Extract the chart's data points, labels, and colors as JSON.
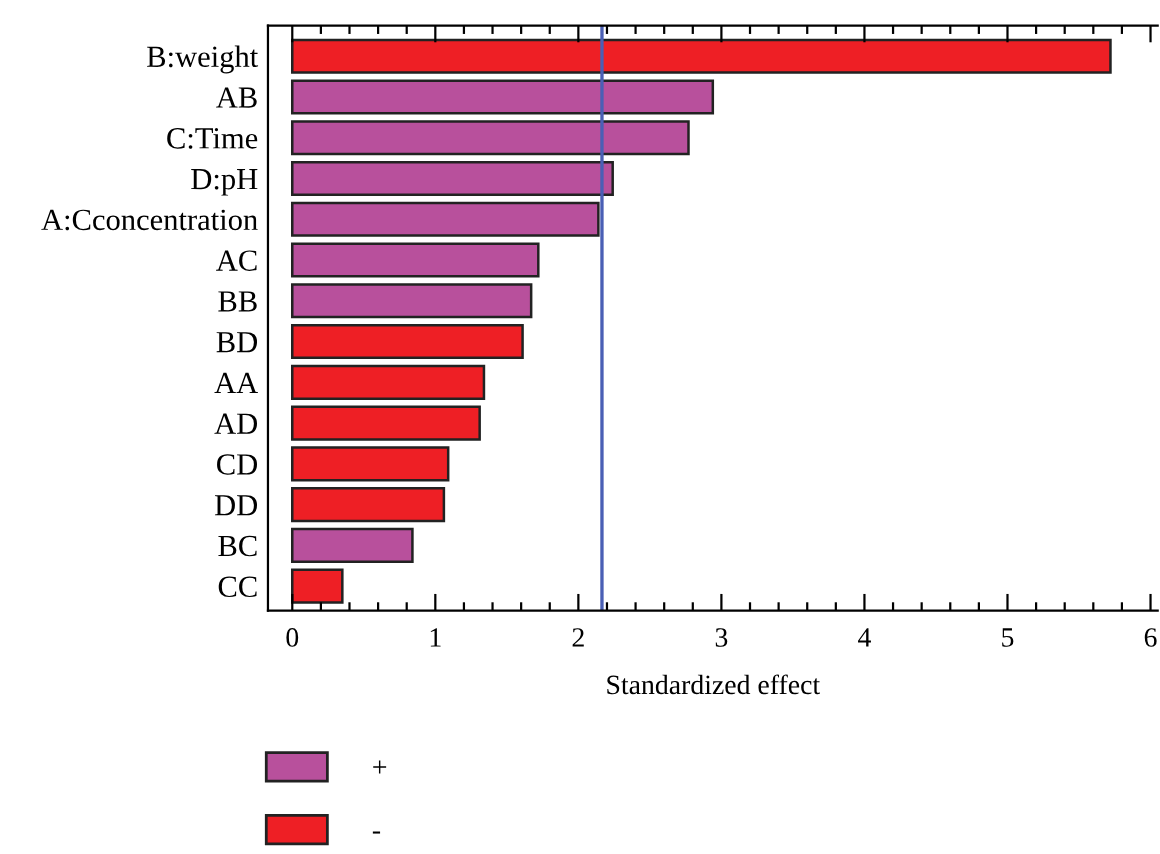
{
  "chart_data": {
    "type": "bar",
    "orientation": "horizontal",
    "xlabel": "Standardized effect",
    "categories": [
      "B:weight",
      "AB",
      "C:Time",
      "D:pH",
      "A:Cconcentration",
      "AC",
      "BB",
      "BD",
      "AA",
      "AD",
      "CD",
      "DD",
      "BC",
      "CC"
    ],
    "series": [
      {
        "name": "+",
        "color": "#b8509c",
        "values": [
          null,
          2.94,
          2.77,
          2.24,
          2.14,
          1.72,
          1.67,
          null,
          null,
          null,
          null,
          null,
          0.84,
          null
        ]
      },
      {
        "name": "-",
        "color": "#ee1f25",
        "values": [
          5.72,
          null,
          null,
          null,
          null,
          null,
          null,
          1.61,
          1.34,
          1.31,
          1.09,
          1.06,
          null,
          0.35
        ]
      }
    ],
    "xlim": [
      -0.17,
      6.05
    ],
    "xticks": [
      0,
      {
        "value": 0.2,
        "label": null
      },
      {
        "value": 0.4,
        "label": null
      },
      {
        "value": 0.6,
        "label": null
      },
      {
        "value": 0.8,
        "label": null
      },
      1,
      {
        "value": 1.2,
        "label": null
      },
      {
        "value": 1.4,
        "label": null
      },
      {
        "value": 1.6,
        "label": null
      },
      {
        "value": 1.8,
        "label": null
      },
      2,
      {
        "value": 2.2,
        "label": null
      },
      {
        "value": 2.4,
        "label": null
      },
      {
        "value": 2.6,
        "label": null
      },
      {
        "value": 2.8,
        "label": null
      },
      3,
      {
        "value": 3.2,
        "label": null
      },
      {
        "value": 3.4,
        "label": null
      },
      {
        "value": 3.6,
        "label": null
      },
      {
        "value": 3.8,
        "label": null
      },
      4,
      {
        "value": 4.2,
        "label": null
      },
      {
        "value": 4.4,
        "label": null
      },
      {
        "value": 4.6,
        "label": null
      },
      {
        "value": 4.8,
        "label": null
      },
      5,
      {
        "value": 5.2,
        "label": null
      },
      {
        "value": 5.4,
        "label": null
      },
      {
        "value": 5.6,
        "label": null
      },
      {
        "value": 5.8,
        "label": null
      },
      6
    ],
    "ref_lines": [
      {
        "axis": "x",
        "value": 2.165,
        "color": "#4a5fb5"
      }
    ],
    "grid": false,
    "legend": "bottom left"
  }
}
